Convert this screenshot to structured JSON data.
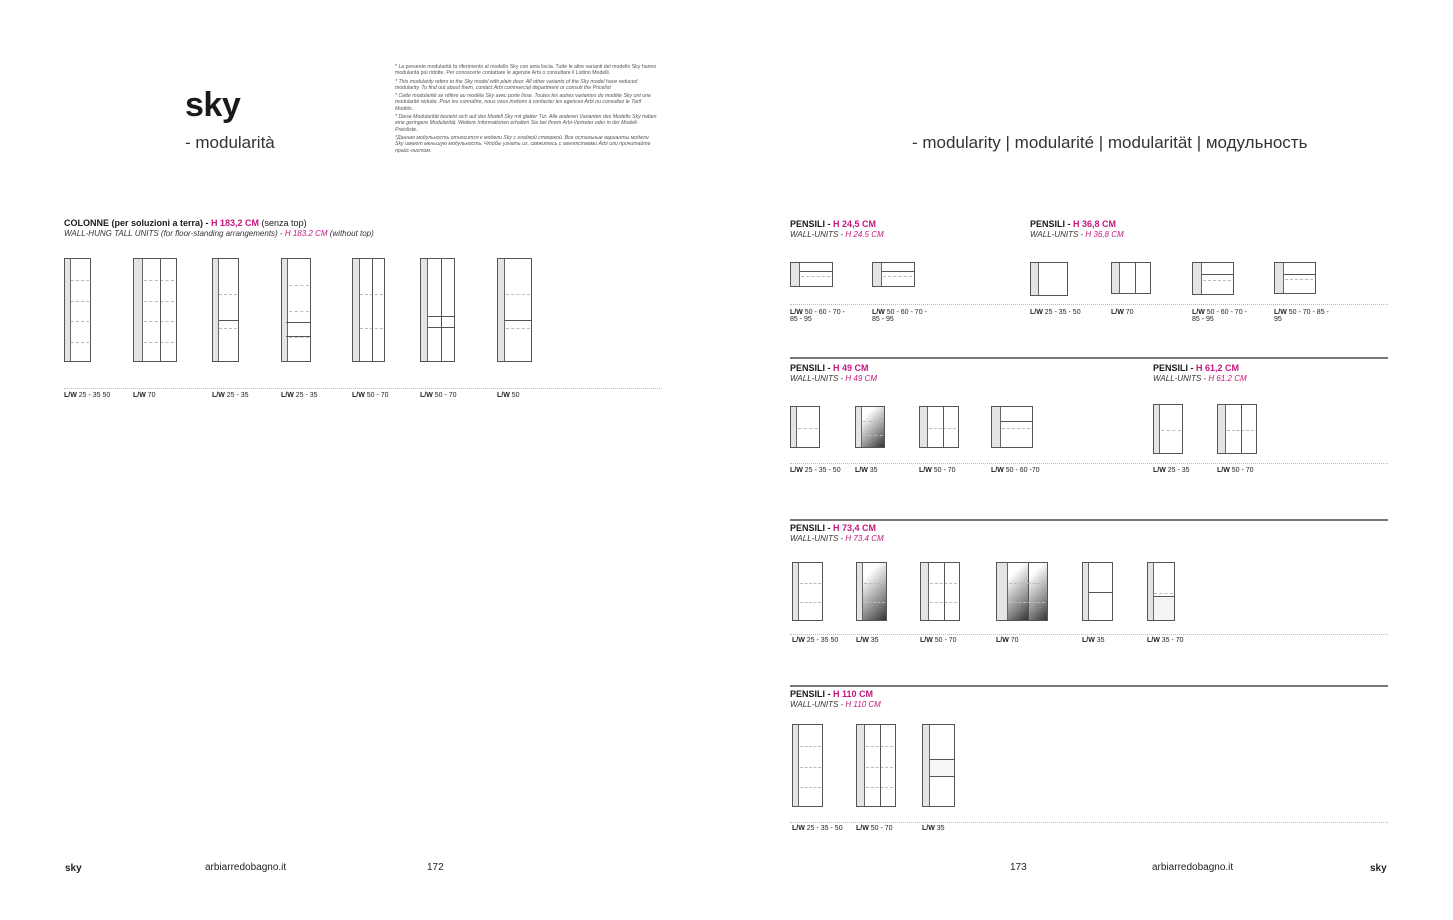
{
  "left_page": {
    "brand": "sky",
    "subtitle": "- modularità",
    "notes": [
      "* La presente modularità fa riferimento al modello Sky con anta liscia. Tutte le altre varianti del modello Sky hanno modularità più ridotte. Per conoscerle contattare le agenzie Arbi o consultare il Listino Modelli.",
      "* This modularity refers to the Sky model with plain door. All other variants of the Sky model have reduced modularity. To find out about them, contact Arbi commercial department or consult the Pricelist",
      "* Cette modularité se réfère au modèle Sky avec porte lisse. Toutes les autres variantes du modèle Sky ont une modularité réduite. Pour les connaître, nous vous invitons à contacter les agences Arbi ou consultez le Tarif Modèls.",
      "* Diese Modularität bezieht sich auf das Modell Sky mit glatter Tür. Alle anderen Varianten des Modells Sky haben eine geringere Modularität. Weitere Informationen erhalten Sie bei Ihrem Arbi-Vertreter oder in der Modell-Preisliste.",
      "*Данная модульность относится к модели Sky с гладкой створкой. Все остальные варианты модели Sky имеют меньшую модульность. Чтобы узнать их, свяжитесь с агентствами Arbi или прочитайте прайс-листом."
    ],
    "section": {
      "title": "COLONNE (per soluzioni a terra) - ",
      "height": "H 183,2 CM",
      "note": " (senza top)",
      "subtitle": "WALL-HUNG TALL UNITS (for floor-standing arrangements) - ",
      "subtitle_height": "H 183.2 CM",
      "subtitle_note": " (without top)",
      "units": [
        {
          "prefix": "L/W",
          "sizes": "25 - 35 50"
        },
        {
          "prefix": "L/W",
          "sizes": "70"
        },
        {
          "prefix": "L/W",
          "sizes": "25 - 35"
        },
        {
          "prefix": "L/W",
          "sizes": "25 - 35"
        },
        {
          "prefix": "L/W",
          "sizes": "50 - 70"
        },
        {
          "prefix": "L/W",
          "sizes": "50 - 70"
        },
        {
          "prefix": "L/W",
          "sizes": "50"
        }
      ]
    },
    "footer": {
      "brand": "sky",
      "website": "arbiarredobagno.it",
      "page": "172"
    }
  },
  "right_page": {
    "subtitle": "- modularity | modularité | modularität | модульность",
    "sections": [
      {
        "title": "PENSILI - ",
        "height": "H 24,5 CM",
        "subtitle": "WALL-UNITS - ",
        "subtitle_height": "H 24.5 CM",
        "units": [
          {
            "prefix": "L/W",
            "sizes": "50 - 60 - 70 - 85 - 95"
          },
          {
            "prefix": "L/W",
            "sizes": "50 - 60 - 70 - 85 - 95"
          }
        ]
      },
      {
        "title": "PENSILI - ",
        "height": "H 36,8 CM",
        "subtitle": "WALL-UNITS - ",
        "subtitle_height": "H 36,8 CM",
        "units": [
          {
            "prefix": "L/W",
            "sizes": "25 - 35 - 50"
          },
          {
            "prefix": "L/W",
            "sizes": "70"
          },
          {
            "prefix": "L/W",
            "sizes": "50 - 60 - 70 - 85 - 95"
          },
          {
            "prefix": "L/W",
            "sizes": "50 - 70 - 85 - 95"
          }
        ]
      },
      {
        "title": "PENSILI - ",
        "height": "H 49 CM",
        "subtitle": "WALL-UNITS - ",
        "subtitle_height": "H 49 CM",
        "units": [
          {
            "prefix": "L/W",
            "sizes": "25 - 35 - 50"
          },
          {
            "prefix": "L/W",
            "sizes": "35"
          },
          {
            "prefix": "L/W",
            "sizes": "50 - 70"
          },
          {
            "prefix": "L/W",
            "sizes": "50 - 60 -70"
          }
        ]
      },
      {
        "title": "PENSILI - ",
        "height": "H 61,2 CM",
        "subtitle": "WALL-UNITS - ",
        "subtitle_height": "H 61.2 CM",
        "units": [
          {
            "prefix": "L/W",
            "sizes": "25 - 35"
          },
          {
            "prefix": "L/W",
            "sizes": "50 - 70"
          }
        ]
      },
      {
        "title": "PENSILI - ",
        "height": "H 73,4 CM",
        "subtitle": "WALL-UNITS - ",
        "subtitle_height": "H 73.4 CM",
        "units": [
          {
            "prefix": "L/W",
            "sizes": "25 - 35 50"
          },
          {
            "prefix": "L/W",
            "sizes": "35"
          },
          {
            "prefix": "L/W",
            "sizes": "50 - 70"
          },
          {
            "prefix": "L/W",
            "sizes": "70"
          },
          {
            "prefix": "L/W",
            "sizes": "35"
          },
          {
            "prefix": "L/W",
            "sizes": "35 - 70"
          }
        ]
      },
      {
        "title": "PENSILI - ",
        "height": "H 110 CM",
        "subtitle": "WALL-UNITS - ",
        "subtitle_height": "H 110 CM",
        "units": [
          {
            "prefix": "L/W",
            "sizes": "25 - 35 - 50"
          },
          {
            "prefix": "L/W",
            "sizes": "50 - 70"
          },
          {
            "prefix": "L/W",
            "sizes": "35"
          }
        ]
      }
    ],
    "footer": {
      "brand": "sky",
      "website": "arbiarredobagno.it",
      "page": "173"
    }
  },
  "colors": {
    "accent": "#c4177f",
    "text": "#1a1a1a"
  }
}
